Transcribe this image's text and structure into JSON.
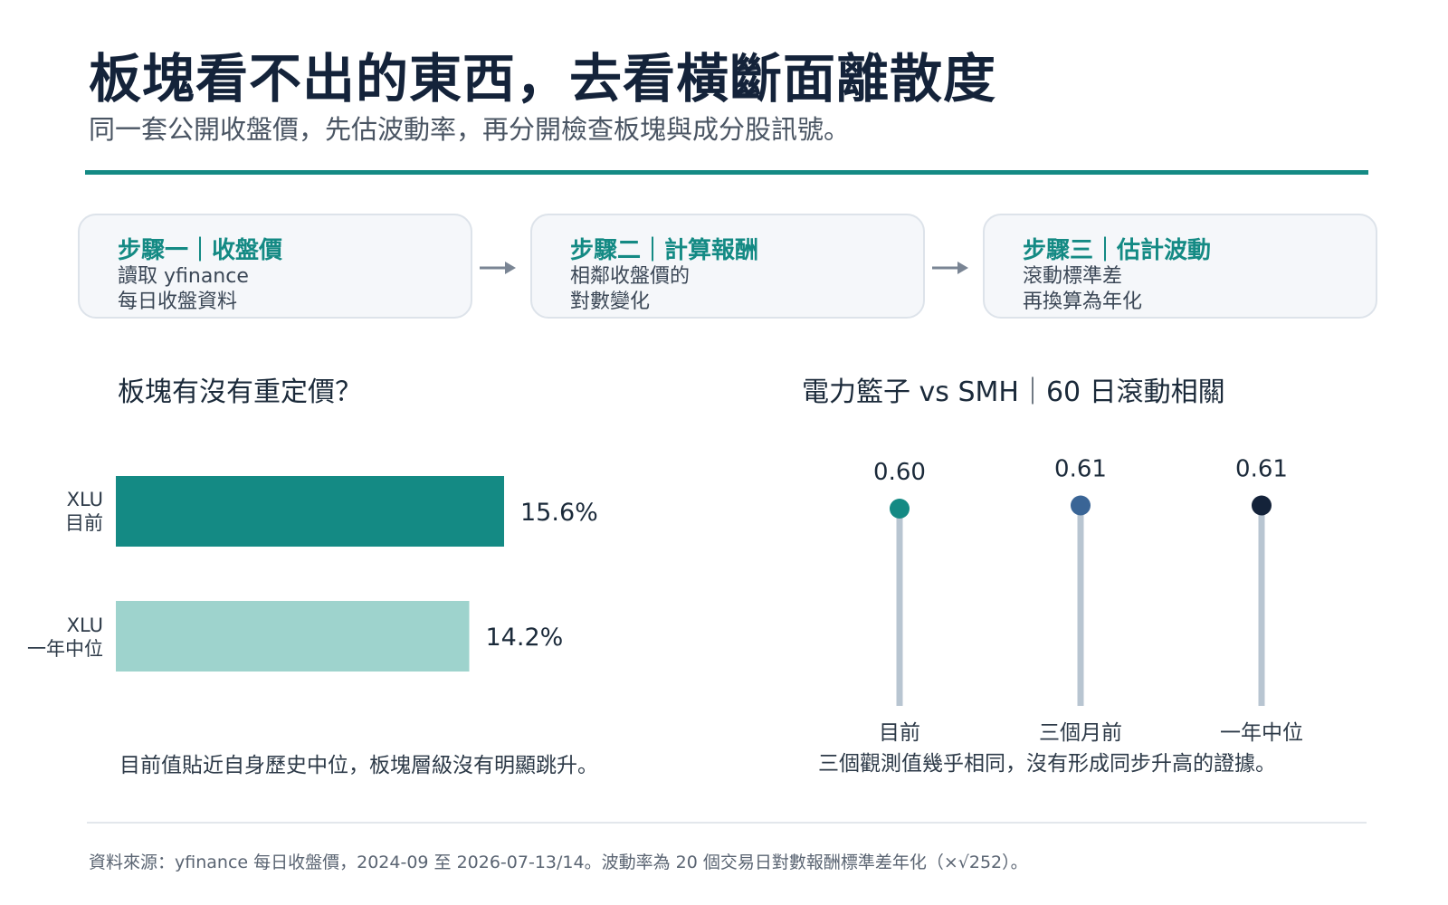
{
  "title": "板塊看不出的東西，去看橫斷面離散度",
  "subtitle": "同一套公開收盤價，先估波動率，再分開檢查板塊與成分股訊號。",
  "steps": [
    {
      "title": "步驟一｜收盤價",
      "line1": "讀取 yfinance",
      "line2": "每日收盤資料"
    },
    {
      "title": "步驟二｜計算報酬",
      "line1": "相鄰收盤價的",
      "line2": "對數變化"
    },
    {
      "title": "步驟三｜估計波動",
      "line1": "滾動標準差",
      "line2": "再換算為年化"
    }
  ],
  "left_panel": {
    "title": "板塊有沒有重定價？",
    "note": "目前值貼近自身歷史中位，板塊層級沒有明顯跳升。"
  },
  "right_panel": {
    "title": "電力籃子 vs SMH｜60 日滾動相關",
    "note": "三個觀測值幾乎相同，沒有形成同步升高的證據。"
  },
  "footer": {
    "source": "資料來源：yfinance 每日收盤價，2024-09 至 2026-07-13/14。波動率為 20 個交易日對數報酬標準差年化（×√252）。"
  },
  "chart_data": [
    {
      "type": "bar",
      "orientation": "horizontal",
      "categories": [
        [
          "XLU",
          "目前"
        ],
        [
          "XLU",
          "一年中位"
        ]
      ],
      "values": [
        15.6,
        14.2
      ],
      "value_labels": [
        "15.6%",
        "14.2%"
      ],
      "xlim": [
        0,
        25
      ],
      "colors": [
        "#148a84",
        "#9ed3cd"
      ],
      "title": "板塊有沒有重定價？"
    },
    {
      "type": "lollipop",
      "categories": [
        "目前",
        "三個月前",
        "一年中位"
      ],
      "values": [
        0.6,
        0.61,
        0.61
      ],
      "value_labels": [
        "0.60",
        "0.61",
        "0.61"
      ],
      "colors": [
        "#148a84",
        "#3a6596",
        "#14233a"
      ],
      "stem_color": "#b8c5d1",
      "title": "電力籃子 vs SMH｜60 日滾動相關"
    }
  ]
}
